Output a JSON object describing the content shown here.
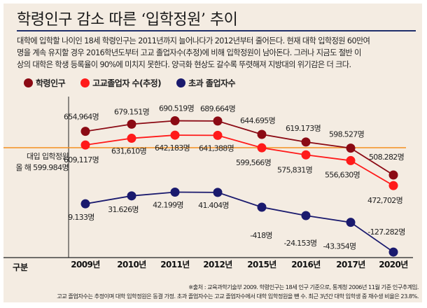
{
  "header": {
    "title": "학령인구 감소 따른 ‘입학정원’ 추이",
    "description": [
      "대학에 입학할 나이인 18세 학령인구는 2011년까지 늘어나다가 2012년부터 줄어든다. 현재 대학 입학정원 60만여",
      "명을 계속 유지할 경우 2016학년도부터 고교 졸업자수(추정)에 비해 입학정원이 남아돈다. 그러나 지금도 절반 이",
      "상의 대학은 학생 등록율이 90%에 미치지 못한다. 양극화 현상도 갈수록 뚜렷해져 지방대의 위기감은 더 크다."
    ]
  },
  "colors": {
    "background": "#f4ece2",
    "title_rule": "#1f2f6b",
    "population": "#8b0a14",
    "graduates": "#ff1a1a",
    "excess": "#1a1a6e",
    "reference_line": "#f39020",
    "axis": "#222222"
  },
  "chart_data": {
    "type": "line",
    "title": "학령인구 감소 따른 ‘입학정원’ 추이",
    "xlabel": "구분",
    "ylabel": "",
    "categories": [
      "2009년",
      "2010년",
      "2011년",
      "2012년",
      "2015년",
      "2016년",
      "2017년",
      "2020년"
    ],
    "legend_position": "top-left",
    "grid": false,
    "series": [
      {
        "key": "population",
        "name": "학령인구",
        "values": [
          654964,
          679151,
          690519,
          689664,
          644695,
          619173,
          598527,
          508282
        ],
        "labels": [
          "654,964명",
          "679.151명",
          "690.519명",
          "689.664명",
          "644.695명",
          "619.173명",
          "598.527명",
          "508.282명"
        ]
      },
      {
        "key": "graduates",
        "name": "고교졸업자 수(추정)",
        "values": [
          609117,
          631610,
          642183,
          641388,
          599566,
          575831,
          556630,
          472702
        ],
        "labels": [
          "609,117명",
          "631,610명",
          "642,183명",
          "641,388명",
          "599,566명",
          "575,831명",
          "556,630명",
          "472,702명"
        ]
      },
      {
        "key": "excess",
        "name": "초과 졸업자수",
        "values": [
          9133,
          31626,
          42199,
          41404,
          -418,
          -24153,
          -43354,
          -127282
        ],
        "labels": [
          "9.133명",
          "31.626명",
          "42.199명",
          "41.404명",
          "-418명",
          "-24.153명",
          "-43.354명",
          "-127.282명"
        ]
      }
    ],
    "reference_line": {
      "label_line1": "대입 입학정원",
      "label_line2": "올 해 599.984명",
      "value": 599984
    }
  },
  "notes": [
    "※출처 : 교육과학기술부 2009. 학령인구는 18세 인구 기준으로, 통계청 2006년 11월 기준 인구추계임.",
    "고교 졸업자수는 추정이며 대학 입학정원은 동결 가정. 초과 졸업자수는 고교 졸업자수에서 대학 입학정원을 뺀 수. 최근 3년간 대학 입학생 중 재수생 비율은 23.8%."
  ]
}
